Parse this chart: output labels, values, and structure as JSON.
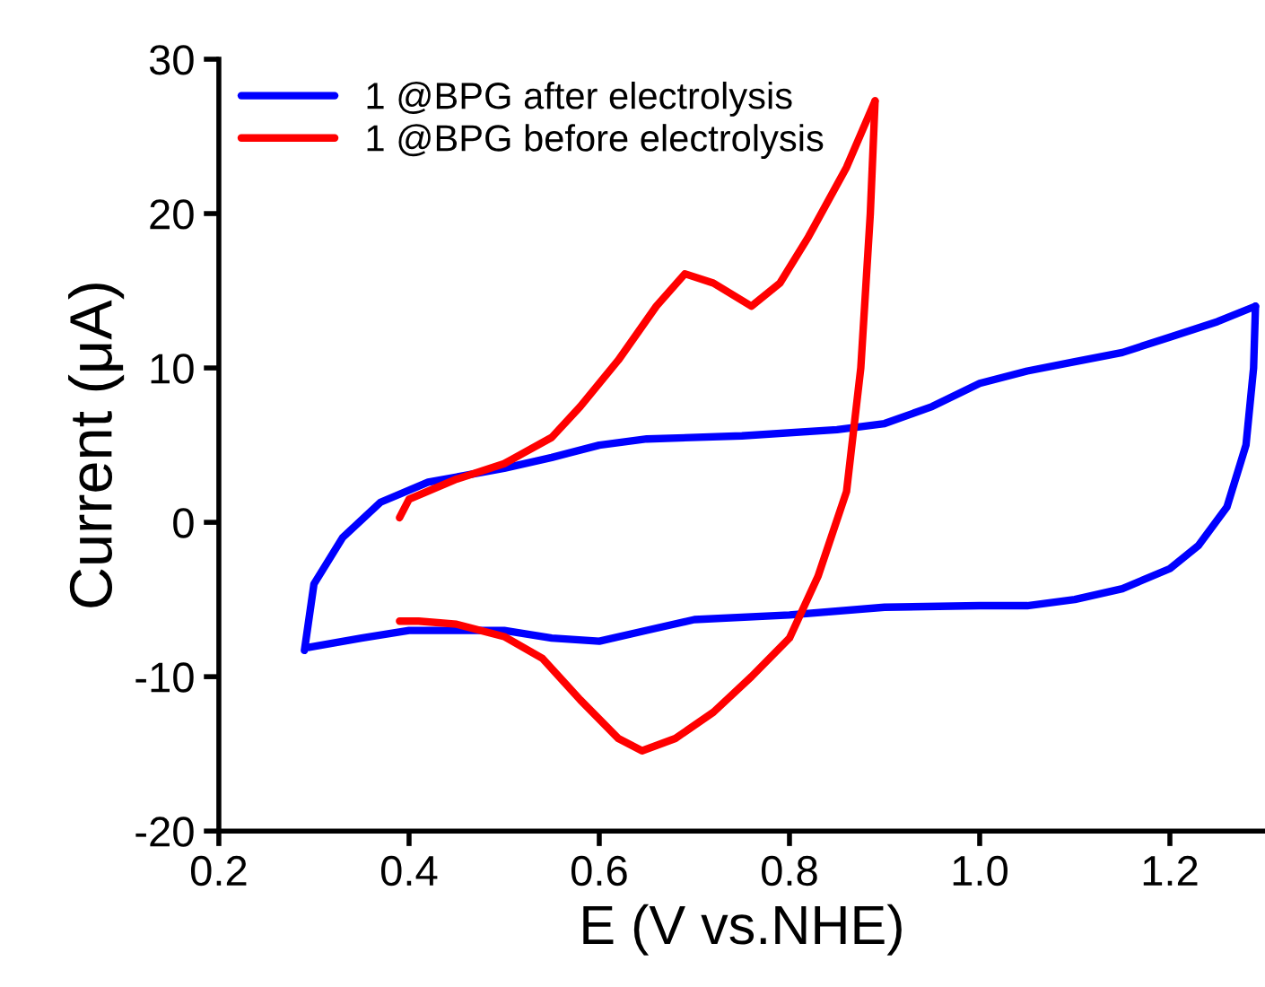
{
  "chart_data": {
    "type": "line",
    "xlabel": "E (V vs.NHE)",
    "ylabel": "Current (μA)",
    "xlim": [
      0.2,
      1.3
    ],
    "xticks": [
      {
        "value": 0.2,
        "label": "0.2"
      },
      {
        "value": 0.4,
        "label": "0.4"
      },
      {
        "value": 0.6,
        "label": "0.6"
      },
      {
        "value": 0.8,
        "label": "0.8"
      },
      {
        "value": 1.0,
        "label": "1.0"
      },
      {
        "value": 1.2,
        "label": "1.2"
      }
    ],
    "ylim": [
      -20,
      30
    ],
    "yticks": [
      -20,
      -10,
      0,
      10,
      20,
      30
    ],
    "grid": false,
    "legend": "top left",
    "marker": "none",
    "line_style": "solid",
    "series": [
      {
        "name": "1 @BPG after electrolysis",
        "color": "#0000ff",
        "x": [
          0.29,
          0.3,
          0.33,
          0.37,
          0.42,
          0.5,
          0.55,
          0.6,
          0.65,
          0.75,
          0.85,
          0.9,
          0.95,
          1.0,
          1.05,
          1.1,
          1.15,
          1.2,
          1.25,
          1.29
        ],
        "values": [
          -8.3,
          -4,
          -1,
          1.3,
          2.6,
          3.5,
          4.2,
          5,
          5.4,
          5.6,
          6,
          6.4,
          7.5,
          9,
          9.8,
          10.4,
          11,
          12,
          13,
          14
        ]
      },
      {
        "color": "#0000ff",
        "x": [
          1.29,
          1.288,
          1.28,
          1.26,
          1.23,
          1.2,
          1.15,
          1.1,
          1.05,
          1.0,
          0.9,
          0.8,
          0.7,
          0.65,
          0.6,
          0.55,
          0.5,
          0.4,
          0.35,
          0.295
        ],
        "values": [
          14,
          10,
          5,
          1,
          -1.5,
          -3,
          -4.3,
          -5,
          -5.4,
          -5.4,
          -5.5,
          -6,
          -6.3,
          -7,
          -7.7,
          -7.5,
          -7,
          -7,
          -7.5,
          -8.1
        ]
      },
      {
        "name": "1 @BPG before electrolysis",
        "color": "#ff0000",
        "x": [
          0.39,
          0.4,
          0.45,
          0.5,
          0.55,
          0.58,
          0.62,
          0.66,
          0.69,
          0.72,
          0.76,
          0.79,
          0.82,
          0.86,
          0.89
        ],
        "values": [
          0.3,
          1.5,
          2.8,
          3.8,
          5.5,
          7.5,
          10.5,
          14,
          16.1,
          15.5,
          14,
          15.5,
          18.5,
          23,
          27.3
        ]
      },
      {
        "color": "#ff0000",
        "x": [
          0.89,
          0.885,
          0.875,
          0.86,
          0.83,
          0.8,
          0.76,
          0.72,
          0.68,
          0.645,
          0.62,
          0.58,
          0.54,
          0.5,
          0.45,
          0.41,
          0.39
        ],
        "values": [
          27.3,
          20,
          10,
          2,
          -3.5,
          -7.5,
          -10,
          -12.3,
          -14,
          -14.8,
          -14,
          -11.5,
          -8.8,
          -7.4,
          -6.6,
          -6.4,
          -6.4
        ]
      }
    ]
  }
}
